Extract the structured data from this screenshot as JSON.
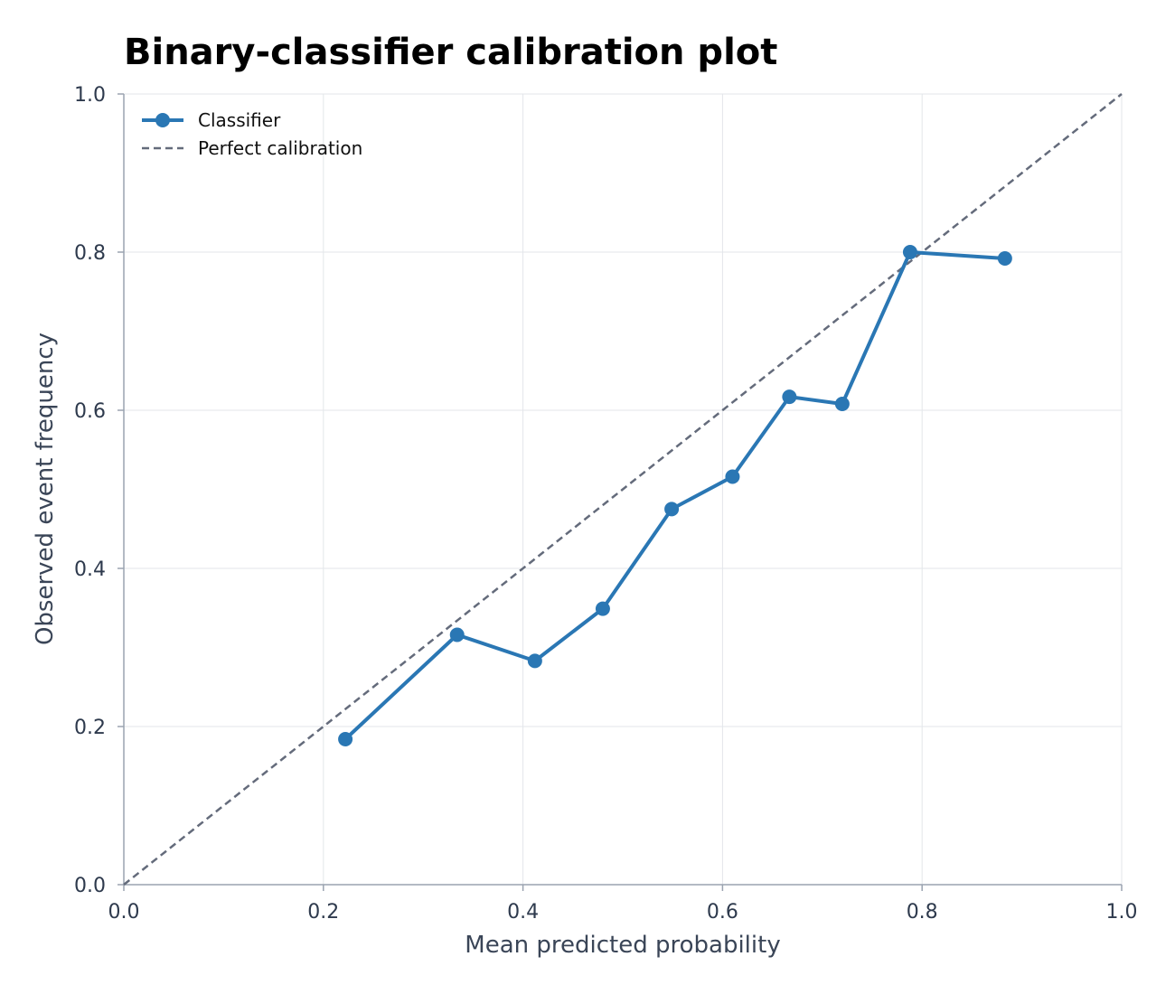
{
  "chart_data": {
    "type": "line",
    "title": "Binary-classifier calibration plot",
    "xlabel": "Mean predicted probability",
    "ylabel": "Observed event frequency",
    "xlim": [
      0.0,
      1.0
    ],
    "ylim": [
      0.0,
      1.0
    ],
    "xticks": [
      "0.0",
      "0.2",
      "0.4",
      "0.6",
      "0.8",
      "1.0"
    ],
    "yticks": [
      "0.0",
      "0.2",
      "0.4",
      "0.6",
      "0.8",
      "1.0"
    ],
    "grid": true,
    "legend_position": "top-left",
    "series": [
      {
        "name": "Classifier",
        "style": "solid-with-markers",
        "color": "#2a77b4",
        "x": [
          0.222,
          0.334,
          0.412,
          0.48,
          0.549,
          0.61,
          0.667,
          0.72,
          0.788,
          0.883
        ],
        "y": [
          0.184,
          0.316,
          0.283,
          0.349,
          0.475,
          0.516,
          0.617,
          0.608,
          0.8,
          0.792
        ]
      },
      {
        "name": "Perfect calibration",
        "style": "dashed",
        "color": "#646b7b",
        "x": [
          0.0,
          1.0
        ],
        "y": [
          0.0,
          1.0
        ]
      }
    ]
  }
}
